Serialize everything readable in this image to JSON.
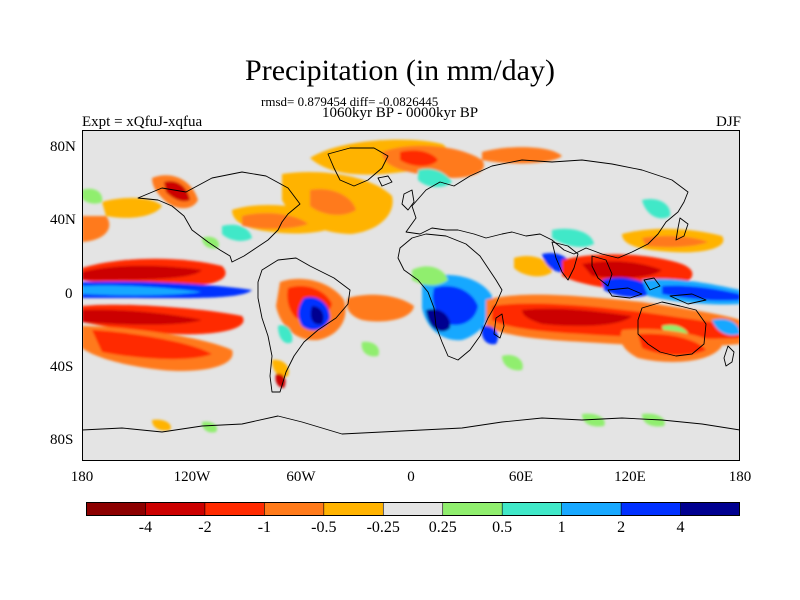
{
  "title": "Precipitation (in mm/day)",
  "stats": "rmsd= 0.879454 diff= -0.0826445",
  "period": "1060kyr BP - 0000kyr BP",
  "expt_label": "Expt = xQfuJ-xqfua",
  "season": "DJF",
  "lat_labels": [
    "80N",
    "40N",
    "0",
    "40S",
    "80S"
  ],
  "lon_labels": [
    "180",
    "120W",
    "60W",
    "0",
    "60E",
    "120E",
    "180"
  ],
  "colorbar": {
    "labels": [
      "-4",
      "-2",
      "-1",
      "-0.5",
      "-0.25",
      "0.25",
      "0.5",
      "1",
      "2",
      "4"
    ],
    "colors": [
      "#8c0000",
      "#cc0000",
      "#ff2a00",
      "#ff7a1a",
      "#ffb300",
      "#e4e4e4",
      "#90ee6e",
      "#40e8c8",
      "#18a8ff",
      "#0030ff",
      "#000090"
    ]
  },
  "colors": {
    "ocean_background": "#e4e4e4",
    "coastline": "#000000"
  }
}
